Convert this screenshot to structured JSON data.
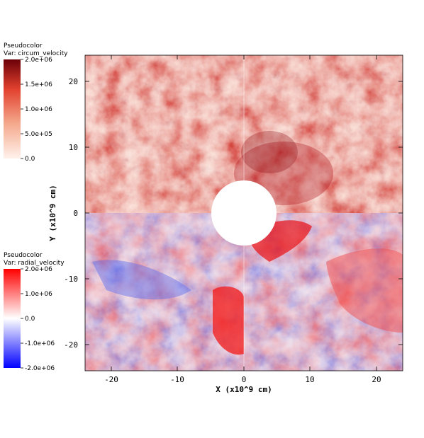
{
  "legends": [
    {
      "plot_label": "Pseudocolor",
      "var_label": "Var: circum_velocity",
      "colors": [
        "#fff2ec",
        "#f4a98d",
        "#e2412e",
        "#6b0008"
      ],
      "tick_labels": [
        "2.0e+06",
        "1.5e+06",
        "1.0e+06",
        "5.0e+05",
        "0.0"
      ]
    },
    {
      "plot_label": "Pseudocolor",
      "var_label": "Var: radial_velocity",
      "colors": [
        "#ff0000",
        "#ffffff",
        "#0000ff"
      ],
      "tick_labels": [
        "2.0e+06",
        "1.0e+06",
        "0.0",
        "-1.0e+06",
        "-2.0e+06"
      ]
    }
  ],
  "axes": {
    "x_title": "X (x10^9 cm)",
    "y_title": "Y (x10^9 cm)",
    "x_ticks": [
      "-20",
      "-10",
      "0",
      "10",
      "20"
    ],
    "y_ticks": [
      "20",
      "10",
      "0",
      "-10",
      "-20"
    ],
    "range": [
      -24,
      24
    ]
  }
}
